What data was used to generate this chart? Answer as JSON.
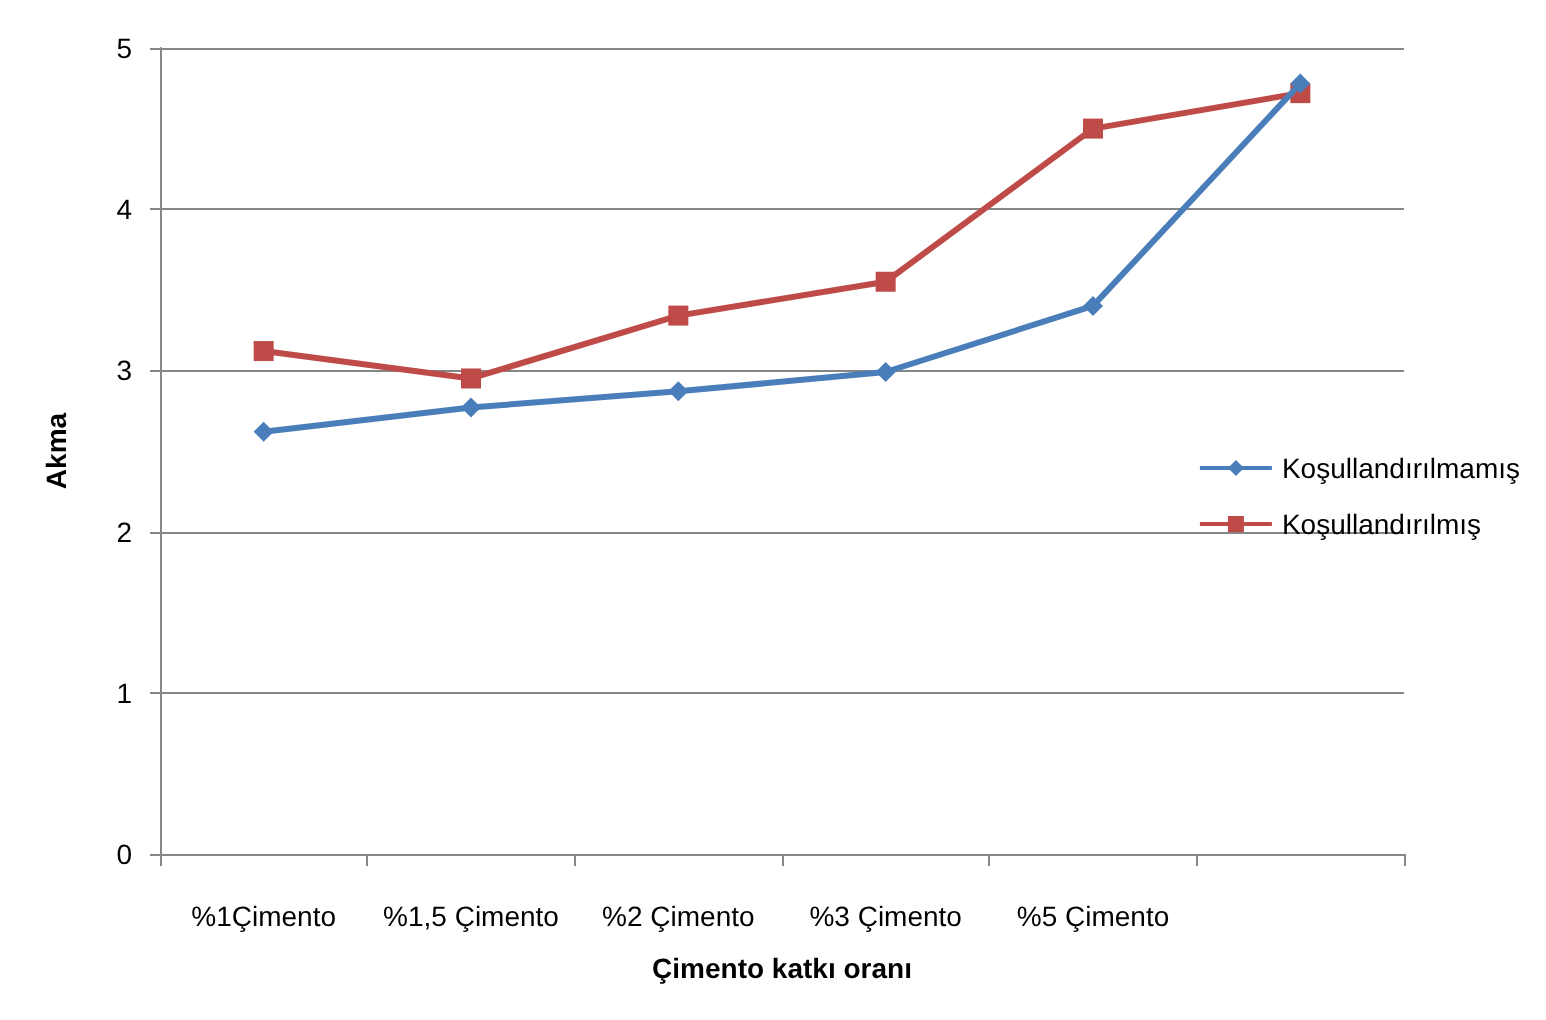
{
  "chart_data": {
    "type": "line",
    "xlabel": "Çimento katkı oranı",
    "ylabel": "Akma",
    "categories": [
      "%1Çimento",
      "%1,5 Çimento",
      "%2 Çimento",
      "%3 Çimento",
      "%5 Çimento",
      null
    ],
    "series": [
      {
        "name": "Koşullandırılmamış",
        "color": "#4a7ebb",
        "marker": "diamond",
        "values": [
          2.62,
          2.77,
          2.87,
          2.99,
          3.4,
          4.78
        ]
      },
      {
        "name": "Koşullandırılmış",
        "color": "#be4b48",
        "marker": "square",
        "values": [
          3.12,
          2.95,
          3.34,
          3.55,
          4.5,
          4.72
        ]
      }
    ],
    "ylim": [
      0,
      5
    ],
    "yticks": [
      0,
      1,
      2,
      3,
      4,
      5
    ],
    "grid": "y",
    "legend": "right"
  }
}
